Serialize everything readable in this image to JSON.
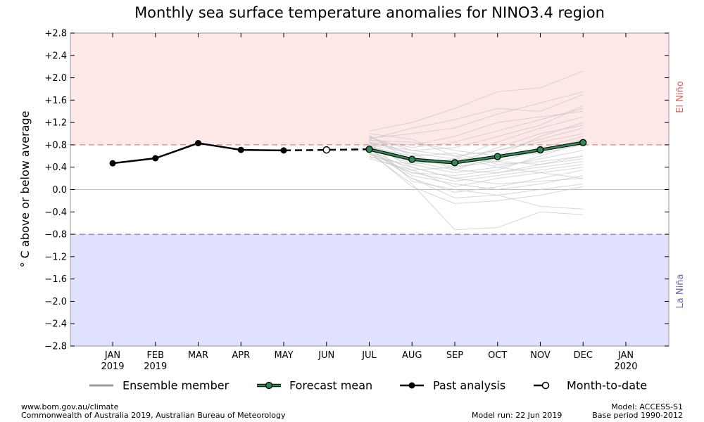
{
  "chart_data": {
    "type": "line",
    "title": "Monthly sea surface temperature anomalies for NINO3.4 region",
    "ylabel": "° C above or below average",
    "ylim": [
      -2.8,
      2.8
    ],
    "yticks": [
      2.8,
      2.4,
      2.0,
      1.6,
      1.2,
      0.8,
      0.4,
      0.0,
      -0.4,
      -0.8,
      -1.2,
      -1.6,
      -2.0,
      -2.4,
      -2.8
    ],
    "ytick_labels": [
      "+2.8",
      "+2.4",
      "+2.0",
      "+1.6",
      "+1.2",
      "+0.8",
      "+0.4",
      "0.0",
      "−0.4",
      "−0.8",
      "−1.2",
      "−1.6",
      "−2.0",
      "−2.4",
      "−2.8"
    ],
    "categories": [
      "JAN\n2019",
      "FEB\n2019",
      "MAR",
      "APR",
      "MAY",
      "JUN",
      "JUL",
      "AUG",
      "SEP",
      "OCT",
      "NOV",
      "DEC",
      "JAN\n2020"
    ],
    "thresholds": {
      "el_nino": 0.8,
      "la_nina": -0.8
    },
    "region_labels": {
      "el_nino": "El Niño",
      "la_nina": "La Niña"
    },
    "colors": {
      "el_nino_fill": "#ffe8e8",
      "la_nina_fill": "#e0e0ff",
      "el_nino_line": "#e06060",
      "la_nina_line": "#6060b0",
      "el_nino_text": "#e06060",
      "la_nina_text": "#6a6ab0",
      "forecast_line": "#2e8b57",
      "ensemble": "#c8c8c8"
    },
    "series": [
      {
        "name": "Past analysis",
        "style": "past",
        "x": [
          0,
          1,
          2,
          3,
          4
        ],
        "values": [
          0.47,
          0.56,
          0.83,
          0.71,
          0.7
        ]
      },
      {
        "name": "Month-to-date",
        "style": "mtd",
        "x": [
          4,
          5,
          6
        ],
        "values": [
          0.7,
          0.71,
          0.72
        ]
      },
      {
        "name": "Forecast mean",
        "style": "forecast",
        "x": [
          6,
          7,
          8,
          9,
          10,
          11
        ],
        "values": [
          0.72,
          0.54,
          0.48,
          0.59,
          0.71,
          0.84
        ]
      }
    ],
    "ensemble_members": [
      [
        0.95,
        0.6,
        0.4,
        0.5,
        0.7,
        0.9
      ],
      [
        0.9,
        0.75,
        0.85,
        1.05,
        1.25,
        1.45
      ],
      [
        0.8,
        0.4,
        0.2,
        0.3,
        0.45,
        0.6
      ],
      [
        0.7,
        0.2,
        -0.05,
        0.05,
        0.2,
        0.35
      ],
      [
        1.05,
        1.2,
        1.45,
        1.75,
        1.82,
        2.12
      ],
      [
        0.65,
        0.1,
        -0.72,
        -0.68,
        -0.4,
        -0.45
      ],
      [
        0.85,
        0.65,
        0.55,
        0.85,
        1.1,
        1.3
      ],
      [
        0.75,
        0.45,
        0.3,
        0.4,
        0.55,
        0.7
      ],
      [
        0.6,
        0.3,
        0.15,
        0.25,
        0.35,
        0.45
      ],
      [
        0.92,
        1.0,
        1.1,
        1.35,
        1.55,
        1.75
      ],
      [
        0.68,
        0.05,
        -0.25,
        -0.2,
        -0.1,
        0.05
      ],
      [
        0.78,
        0.55,
        0.5,
        0.7,
        0.9,
        1.1
      ],
      [
        0.88,
        0.85,
        0.7,
        0.6,
        0.65,
        0.8
      ],
      [
        0.55,
        0.35,
        0.4,
        0.55,
        0.75,
        0.95
      ],
      [
        1.0,
        0.9,
        0.6,
        0.4,
        0.3,
        0.2
      ],
      [
        0.72,
        0.25,
        0.1,
        0.0,
        0.1,
        0.25
      ],
      [
        0.82,
        0.7,
        0.75,
        0.95,
        1.15,
        1.5
      ],
      [
        0.63,
        0.4,
        0.2,
        0.1,
        0.15,
        0.2
      ],
      [
        0.97,
        0.5,
        0.35,
        0.6,
        0.95,
        1.2
      ],
      [
        0.76,
        0.6,
        0.65,
        0.45,
        0.5,
        0.6
      ],
      [
        0.86,
        0.15,
        0.0,
        -0.1,
        -0.3,
        -0.35
      ],
      [
        0.7,
        0.5,
        0.45,
        0.75,
        1.0,
        1.15
      ],
      [
        0.9,
        1.1,
        1.25,
        1.45,
        1.4,
        1.7
      ],
      [
        0.66,
        0.3,
        0.25,
        0.35,
        0.6,
        0.85
      ],
      [
        0.8,
        0.65,
        0.35,
        0.3,
        0.4,
        0.5
      ],
      [
        0.74,
        0.2,
        -0.15,
        -0.1,
        0.0,
        0.1
      ],
      [
        0.84,
        0.8,
        0.95,
        1.2,
        1.3,
        1.4
      ],
      [
        0.58,
        0.45,
        0.55,
        0.5,
        0.45,
        0.55
      ],
      [
        0.94,
        0.7,
        0.6,
        0.7,
        0.85,
        1.0
      ],
      [
        0.71,
        0.35,
        0.05,
        0.2,
        0.3,
        0.4
      ]
    ]
  },
  "legend": [
    {
      "label": "Ensemble member",
      "style": "ensemble"
    },
    {
      "label": "Forecast mean",
      "style": "forecast"
    },
    {
      "label": "Past analysis",
      "style": "past"
    },
    {
      "label": "Month-to-date",
      "style": "mtd"
    }
  ],
  "footer": {
    "url": "www.bom.gov.au/climate",
    "copyright": "Commonwealth of Australia 2019, Australian Bureau of Meteorology",
    "model_run": "Model run: 22 Jun 2019",
    "model": "Model: ACCESS-S1",
    "base_period": "Base period 1990-2012"
  }
}
